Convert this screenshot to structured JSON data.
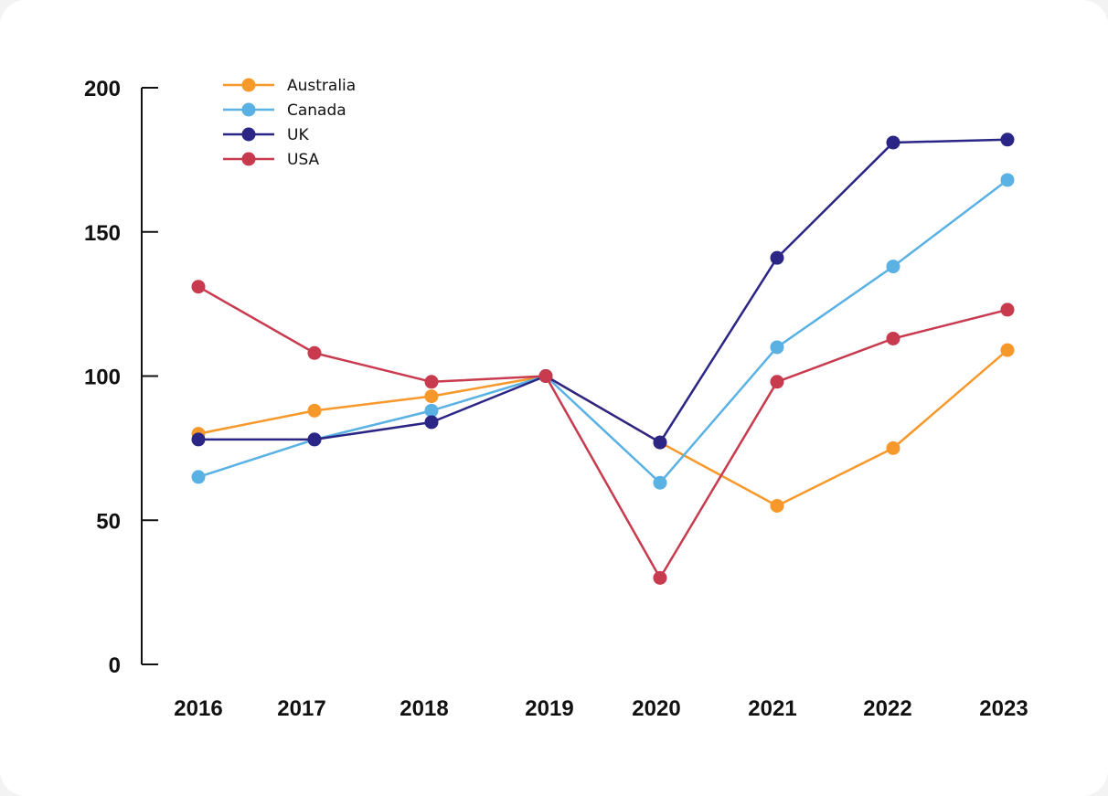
{
  "chart_data": {
    "type": "line",
    "title": "",
    "xlabel": "",
    "ylabel": "",
    "x": [
      "2016",
      "2017",
      "2018",
      "2019",
      "2020",
      "2021",
      "2022",
      "2023"
    ],
    "yticks": [
      "0",
      "50",
      "100",
      "150",
      "200"
    ],
    "ylim": [
      0,
      200
    ],
    "grid": false,
    "legend_position": "top-left",
    "series": [
      {
        "name": "Australia",
        "color": "#f7982b",
        "values": [
          80,
          88,
          93,
          100,
          77,
          55,
          75,
          109
        ]
      },
      {
        "name": "Canada",
        "color": "#5ab1e3",
        "values": [
          65,
          78,
          88,
          100,
          63,
          110,
          138,
          168
        ]
      },
      {
        "name": "UK",
        "color": "#2b2586",
        "values": [
          78,
          78,
          84,
          100,
          77,
          141,
          181,
          182
        ]
      },
      {
        "name": "USA",
        "color": "#c83a4e",
        "values": [
          131,
          108,
          98,
          100,
          30,
          98,
          113,
          123
        ]
      }
    ]
  }
}
